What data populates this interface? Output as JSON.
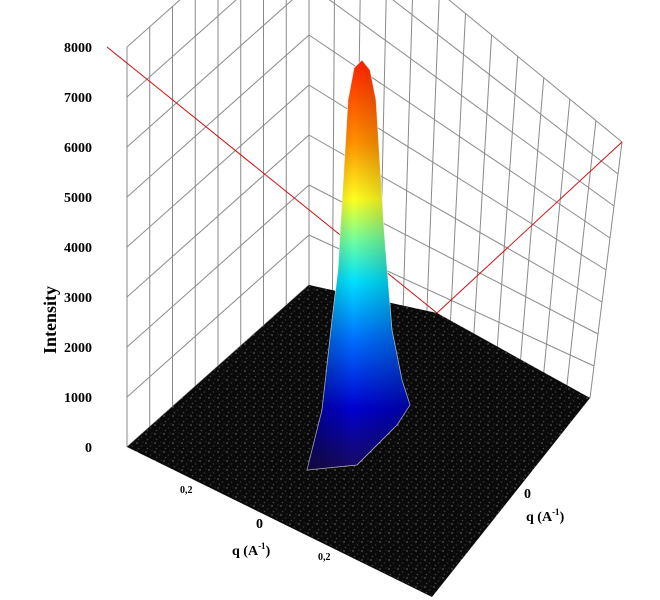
{
  "chart_data": {
    "type": "surface",
    "z_axis": {
      "label": "Intensity",
      "range": [
        0,
        8000
      ],
      "ticks": [
        "0",
        "1000",
        "2000",
        "3000",
        "4000",
        "5000",
        "6000",
        "7000",
        "8000"
      ]
    },
    "left_axis": {
      "label": "q (A",
      "label_sup": "-1",
      "label_close": ")",
      "ticks": [
        "0,2",
        "0",
        "0,2"
      ]
    },
    "right_axis": {
      "label": "q (A",
      "label_sup": "-1",
      "label_close": ")",
      "ticks": [
        "0"
      ]
    },
    "peak": {
      "q_left": 0,
      "q_right": 0,
      "intensity": 7600
    },
    "background_intensity": 150,
    "colormap": [
      "#1a0a5a",
      "#0000d0",
      "#0080ff",
      "#00ffff",
      "#80ff80",
      "#ffff00",
      "#ff8000",
      "#ff2000"
    ],
    "grid": true,
    "highlight_color": "#d01010"
  }
}
